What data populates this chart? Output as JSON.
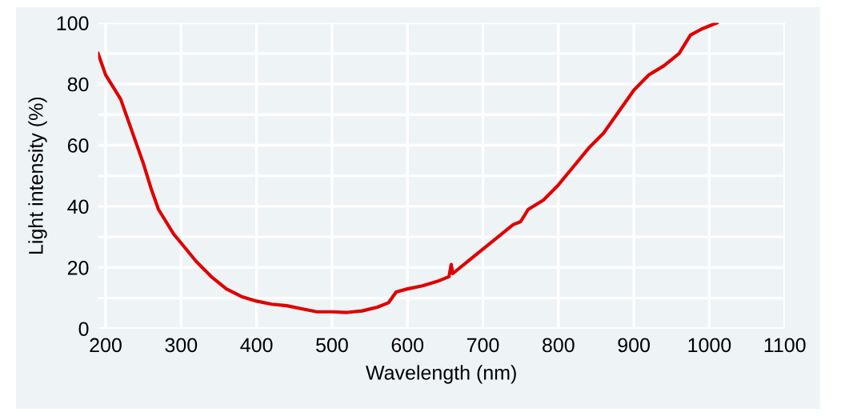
{
  "chart_data": {
    "type": "line",
    "xlabel": "Wavelength (nm)",
    "ylabel": "Light intensity (%)",
    "x": [
      190,
      200,
      210,
      220,
      230,
      240,
      250,
      260,
      270,
      280,
      290,
      300,
      320,
      340,
      360,
      380,
      400,
      420,
      440,
      460,
      480,
      500,
      520,
      540,
      560,
      575,
      585,
      600,
      620,
      640,
      655,
      658,
      660,
      680,
      700,
      720,
      740,
      750,
      760,
      780,
      800,
      820,
      840,
      860,
      880,
      900,
      920,
      940,
      960,
      975,
      990,
      1010
    ],
    "series": [
      {
        "color": "#e00000",
        "values": [
          90,
          83,
          79,
          75,
          68,
          61,
          54,
          46,
          39,
          35,
          31,
          28,
          22,
          17,
          13,
          10.5,
          9,
          8,
          7.5,
          6.5,
          5.5,
          5.5,
          5.3,
          5.8,
          7,
          8.5,
          12,
          13,
          14,
          15.5,
          17,
          21,
          18,
          22,
          26,
          30,
          34,
          35,
          39,
          42,
          47,
          53,
          59,
          64,
          71,
          78,
          83,
          86,
          90,
          96,
          98,
          100
        ]
      }
    ],
    "xlim": [
      190,
      1100
    ],
    "xticks": [
      200,
      300,
      400,
      500,
      600,
      700,
      800,
      900,
      1000,
      1100
    ],
    "ylim": [
      0,
      100
    ],
    "yticks": [
      0,
      {
        "value": 10,
        "label": null
      },
      20,
      {
        "value": 30,
        "label": null
      },
      40,
      {
        "value": 50,
        "label": null
      },
      60,
      {
        "value": 70,
        "label": null
      },
      80,
      {
        "value": 90,
        "label": null
      },
      100
    ],
    "grid": true,
    "marker": "none",
    "line_style": "solid"
  }
}
